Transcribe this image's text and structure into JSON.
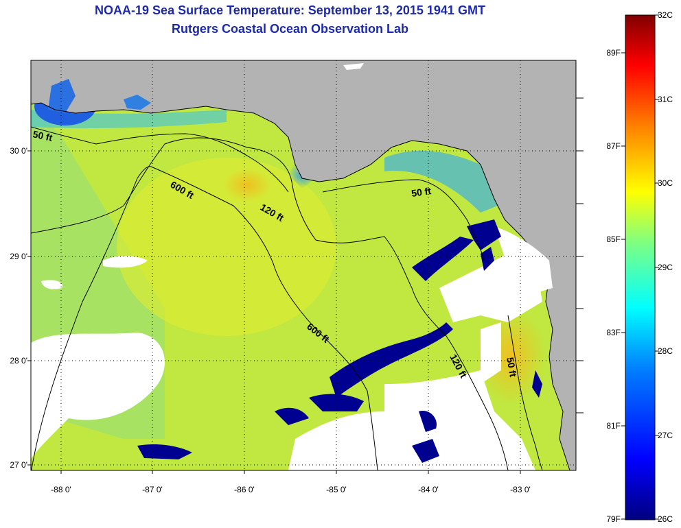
{
  "title_line1": "NOAA-19 Sea Surface Temperature:  September 13, 2015 1941 GMT",
  "title_line2": "Rutgers Coastal Ocean Observation Lab",
  "y_ticks": [
    "30 0'",
    "29 0'",
    "28 0'",
    "27 0'"
  ],
  "x_ticks": [
    "-88 0'",
    "-87 0'",
    "-86 0'",
    "-85 0'",
    "-84 0'",
    "-83 0'"
  ],
  "contours": [
    {
      "label": "50 ft"
    },
    {
      "label": "600 ft"
    },
    {
      "label": "120 ft"
    },
    {
      "label": "50 ft"
    },
    {
      "label": "600 ft"
    },
    {
      "label": "120 ft"
    },
    {
      "label": "50 ft"
    }
  ],
  "colorbar": {
    "celsius": [
      "32C",
      "31C",
      "30C",
      "29C",
      "28C",
      "27C",
      "26C"
    ],
    "fahrenheit": [
      "89F",
      "87F",
      "85F",
      "83F",
      "81F",
      "79F"
    ],
    "colors": [
      "#000080",
      "#0000ff",
      "#0080ff",
      "#00ffff",
      "#80ff80",
      "#ffff00",
      "#ff8000",
      "#ff0000",
      "#800000"
    ]
  },
  "colors": {
    "land": "#b3b3b3",
    "cloud": "#ffffff",
    "title": "#1d2aa8"
  }
}
